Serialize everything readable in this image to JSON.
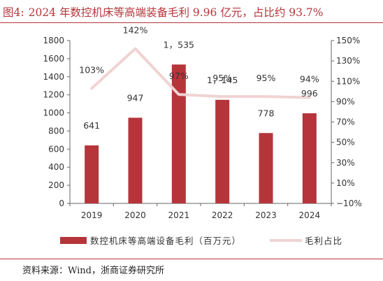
{
  "figure": {
    "label": "图4:",
    "title": "2024 年数控机床等高端装备毛利 9.96 亿元，占比约 93.7%",
    "source": "资料来源：Wind，浙商证券研究所"
  },
  "colors": {
    "title": "#b5353a",
    "bar": "#b5353a",
    "line": "#f0d3d3",
    "axis": "#666666"
  },
  "chart_data": {
    "type": "bar",
    "categories": [
      "2019",
      "2020",
      "2021",
      "2022",
      "2023",
      "2024"
    ],
    "series": [
      {
        "name": "数控机床等高端设备毛利（百万元）",
        "type": "bar",
        "axis": "left",
        "values": [
          641,
          947,
          1535,
          1145,
          778,
          996
        ],
        "labels": [
          "641",
          "947",
          "1，535",
          "1，145",
          "778",
          "996"
        ]
      },
      {
        "name": "毛利占比",
        "type": "line",
        "axis": "right",
        "values": [
          103,
          142,
          97,
          95,
          95,
          94
        ],
        "labels": [
          "103%",
          "142%",
          "97%",
          "95%",
          "95%",
          "94%"
        ]
      }
    ],
    "y_left": {
      "lim": [
        0,
        1800
      ],
      "ticks": [
        "0",
        "200",
        "400",
        "600",
        "800",
        "1000",
        "1200",
        "1400",
        "1600",
        "1800"
      ]
    },
    "y_right": {
      "lim": [
        -10,
        150
      ],
      "ticks": [
        "−10%",
        "10%",
        "30%",
        "50%",
        "70%",
        "90%",
        "110%",
        "130%",
        "150%"
      ]
    },
    "grid": false,
    "legend": "bottom"
  }
}
